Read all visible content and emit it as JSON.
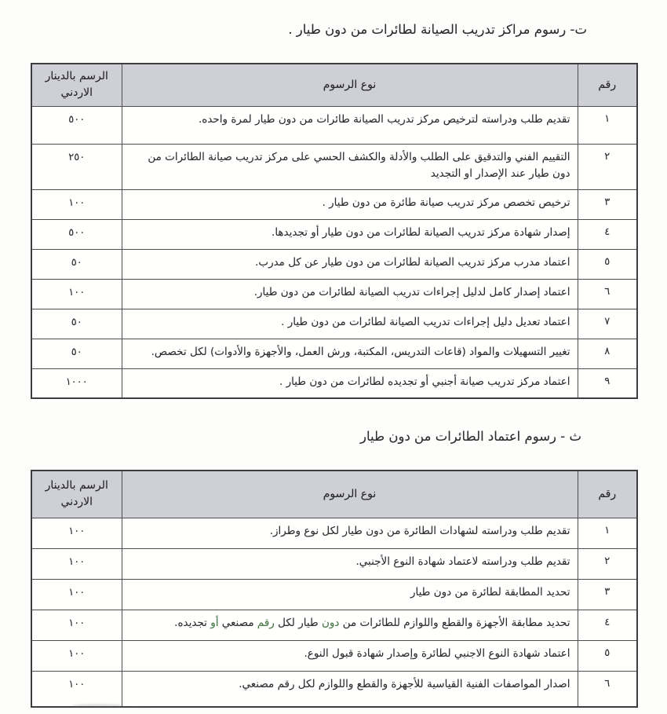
{
  "colors": {
    "header_bg": "#cfcfd8",
    "border": "#4e4e4e",
    "text": "#2f2f33",
    "green_text": "#477a47",
    "page_bg": "#fdfdfc"
  },
  "table_headers": {
    "number": "رقم",
    "fee_type": "نوع الرسوم",
    "fee_jd": "الرسم بالدينار\nالاردني"
  },
  "sections": [
    {
      "title": "ت- رسوم مراكز تدريب الصيانة لطائرات من دون طيار .",
      "rows": [
        {
          "num": "١",
          "text": "تقديم طلب ودراسته لترخيص مركز تدريب الصيانة طائرات من دون طيار لمرة واحده.",
          "fee": "٥٠٠"
        },
        {
          "num": "٢",
          "text": "التقييم الفني والتدقيق على الطلب والأدلة والكشف الحسي على مركز تدريب صيانة الطائرات من دون طيار عند الإصدار او التجديد",
          "fee": "٢٥٠"
        },
        {
          "num": "٣",
          "text": "ترخيص تخصص مركز تدريب صيانة طائرة من دون طيار .",
          "fee": "١٠٠"
        },
        {
          "num": "٤",
          "text": "إصدار شهادة مركز تدريب الصيانة لطائرات من دون طيار أو تجديدها.",
          "fee": "٥٠٠"
        },
        {
          "num": "٥",
          "text": "اعتماد مدرب مركز تدريب الصيانة  لطائرات من دون طيار عن كل مدرب.",
          "fee": "٥٠"
        },
        {
          "num": "٦",
          "text": "اعتماد إصدار كامل لدليل إجراءات تدريب الصيانة لطائرات من دون طيار.",
          "fee": "١٠٠"
        },
        {
          "num": "٧",
          "text": "اعتماد تعديل دليل إجراءات تدريب الصيانة لطائرات من دون طيار .",
          "fee": "٥٠"
        },
        {
          "num": "٨",
          "text": "تغيير التسهيلات والمواد (قاعات التدريس، المكتبة، ورش العمل، والأجهزة والأدوات) لكل تخصص.",
          "fee": "٥٠"
        },
        {
          "num": "٩",
          "text": "اعتماد مركز تدريب صيانة أجنبي أو تجديده لطائرات من دون طيار .",
          "fee": "١٠٠٠"
        }
      ]
    },
    {
      "title": "ث - رسوم اعتماد الطائرات من دون طيار",
      "rows": [
        {
          "num": "١",
          "text": "تقديم طلب ودراسته لشهادات الطائرة من دون طيار لكل نوع وطراز.",
          "fee": "١٠٠"
        },
        {
          "num": "٢",
          "text": "تقديم طلب ودراسته لاعتماد شهادة النوع الأجنبي.",
          "fee": "١٠٠"
        },
        {
          "num": "٣",
          "text": "تحديد المطابقة لطائرة من دون طيار",
          "fee": "١٠٠"
        },
        {
          "num": "٤",
          "parts": [
            {
              "text": "تحديد مطابقة الأجهزة والقطع واللوازم للطائرات من "
            },
            {
              "text": "دون",
              "green": true
            },
            {
              "text": " طيار لكل "
            },
            {
              "text": "رقم",
              "green": true
            },
            {
              "text": " مصنعي "
            },
            {
              "text": "أو",
              "green": true
            },
            {
              "text": " تجديده."
            }
          ],
          "fee": "١٠٠"
        },
        {
          "num": "٥",
          "text": "اعتماد شهادة النوع الاجنبي لطائرة وإصدار شهادة قبول النوع.",
          "fee": "١٠٠"
        },
        {
          "num": "٦",
          "text": "اصدار المواصفات الفنية القياسية للأجهزة والقطع واللوازم لكل رقم مصنعي.",
          "fee": "١٠٠"
        }
      ]
    }
  ]
}
